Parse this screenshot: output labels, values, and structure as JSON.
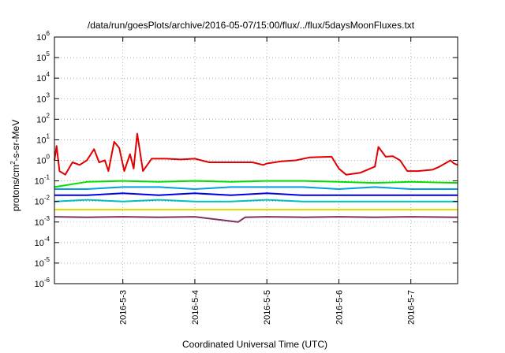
{
  "chart_data": {
    "type": "line",
    "title": "/data/run/goesPlots/archive/2016-05-07/15:00/flux/../flux/5daysMoonFluxes.txt",
    "xlabel": "Coordinated Universal Time (UTC)",
    "ylabel_main": "protons/cm",
    "ylabel_sup": "2",
    "ylabel_tail": "-s-sr-MeV",
    "y_scale": "log",
    "ylim": [
      1e-06,
      1000000.0
    ],
    "y_tick_exponents": [
      -6,
      -5,
      -4,
      -3,
      -2,
      -1,
      0,
      1,
      2,
      3,
      4,
      5,
      6
    ],
    "y_tick_base": "10",
    "xlim": [
      2.05,
      7.65
    ],
    "x_ticks": [
      {
        "value": 3,
        "label": "2016-5-3"
      },
      {
        "value": 4,
        "label": "2016-5-4"
      },
      {
        "value": 5,
        "label": "2016-5-5"
      },
      {
        "value": 6,
        "label": "2016-5-6"
      },
      {
        "value": 7,
        "label": "2016-5-7"
      }
    ],
    "grid": true,
    "legend": "none",
    "series": [
      {
        "color": "#e00000",
        "points": [
          [
            2.05,
            1.0
          ],
          [
            2.08,
            5.0
          ],
          [
            2.12,
            0.3
          ],
          [
            2.2,
            0.2
          ],
          [
            2.3,
            0.8
          ],
          [
            2.4,
            0.6
          ],
          [
            2.5,
            1.0
          ],
          [
            2.6,
            3.5
          ],
          [
            2.67,
            0.8
          ],
          [
            2.75,
            1.0
          ],
          [
            2.8,
            0.3
          ],
          [
            2.88,
            8.0
          ],
          [
            2.95,
            4.0
          ],
          [
            3.02,
            0.3
          ],
          [
            3.1,
            2.0
          ],
          [
            3.15,
            0.4
          ],
          [
            3.2,
            20.0
          ],
          [
            3.28,
            0.3
          ],
          [
            3.4,
            1.2
          ],
          [
            3.6,
            1.2
          ],
          [
            3.8,
            1.1
          ],
          [
            4.0,
            1.2
          ],
          [
            4.2,
            0.8
          ],
          [
            4.5,
            0.8
          ],
          [
            4.8,
            0.8
          ],
          [
            4.95,
            0.6
          ],
          [
            5.0,
            0.7
          ],
          [
            5.2,
            0.9
          ],
          [
            5.4,
            1.0
          ],
          [
            5.6,
            1.4
          ],
          [
            5.9,
            1.5
          ],
          [
            6.0,
            0.4
          ],
          [
            6.1,
            0.2
          ],
          [
            6.3,
            0.25
          ],
          [
            6.5,
            0.5
          ],
          [
            6.55,
            4.5
          ],
          [
            6.65,
            1.5
          ],
          [
            6.75,
            1.6
          ],
          [
            6.85,
            1.0
          ],
          [
            6.95,
            0.3
          ],
          [
            7.1,
            0.3
          ],
          [
            7.3,
            0.35
          ],
          [
            7.4,
            0.5
          ],
          [
            7.55,
            1.0
          ],
          [
            7.6,
            0.7
          ],
          [
            7.65,
            0.6
          ]
        ]
      },
      {
        "color": "#00e000",
        "points": [
          [
            2.05,
            0.05
          ],
          [
            2.5,
            0.09
          ],
          [
            3.0,
            0.1
          ],
          [
            3.5,
            0.09
          ],
          [
            4.0,
            0.1
          ],
          [
            4.5,
            0.09
          ],
          [
            5.0,
            0.1
          ],
          [
            5.5,
            0.1
          ],
          [
            6.0,
            0.09
          ],
          [
            6.5,
            0.08
          ],
          [
            7.0,
            0.09
          ],
          [
            7.65,
            0.08
          ]
        ]
      },
      {
        "color": "#00a0e0",
        "points": [
          [
            2.05,
            0.04
          ],
          [
            2.5,
            0.04
          ],
          [
            3.0,
            0.05
          ],
          [
            3.5,
            0.05
          ],
          [
            4.0,
            0.04
          ],
          [
            4.5,
            0.05
          ],
          [
            5.0,
            0.05
          ],
          [
            5.5,
            0.05
          ],
          [
            6.0,
            0.04
          ],
          [
            6.5,
            0.05
          ],
          [
            7.0,
            0.04
          ],
          [
            7.65,
            0.04
          ]
        ]
      },
      {
        "color": "#0000e0",
        "points": [
          [
            2.05,
            0.02
          ],
          [
            2.5,
            0.02
          ],
          [
            3.0,
            0.025
          ],
          [
            3.5,
            0.02
          ],
          [
            4.0,
            0.025
          ],
          [
            4.5,
            0.02
          ],
          [
            5.0,
            0.025
          ],
          [
            5.5,
            0.02
          ],
          [
            6.0,
            0.02
          ],
          [
            6.5,
            0.02
          ],
          [
            7.0,
            0.02
          ],
          [
            7.65,
            0.02
          ]
        ]
      },
      {
        "color": "#00c0c0",
        "points": [
          [
            2.05,
            0.01
          ],
          [
            2.5,
            0.012
          ],
          [
            3.0,
            0.01
          ],
          [
            3.5,
            0.012
          ],
          [
            4.0,
            0.01
          ],
          [
            4.5,
            0.01
          ],
          [
            5.0,
            0.012
          ],
          [
            5.5,
            0.01
          ],
          [
            6.0,
            0.01
          ],
          [
            6.5,
            0.01
          ],
          [
            7.0,
            0.01
          ],
          [
            7.65,
            0.01
          ]
        ]
      },
      {
        "color": "#e0e000",
        "points": [
          [
            2.05,
            0.004
          ],
          [
            3.0,
            0.004
          ],
          [
            4.0,
            0.004
          ],
          [
            5.0,
            0.004
          ],
          [
            6.0,
            0.004
          ],
          [
            7.0,
            0.004
          ],
          [
            7.65,
            0.004
          ]
        ]
      },
      {
        "color": "#803060",
        "points": [
          [
            2.05,
            0.0018
          ],
          [
            2.5,
            0.0017
          ],
          [
            3.0,
            0.0018
          ],
          [
            3.5,
            0.0017
          ],
          [
            4.0,
            0.0018
          ],
          [
            4.6,
            0.001
          ],
          [
            4.7,
            0.0017
          ],
          [
            5.0,
            0.0018
          ],
          [
            5.5,
            0.0017
          ],
          [
            6.0,
            0.0018
          ],
          [
            6.5,
            0.0017
          ],
          [
            7.0,
            0.0018
          ],
          [
            7.65,
            0.0017
          ]
        ]
      }
    ]
  }
}
